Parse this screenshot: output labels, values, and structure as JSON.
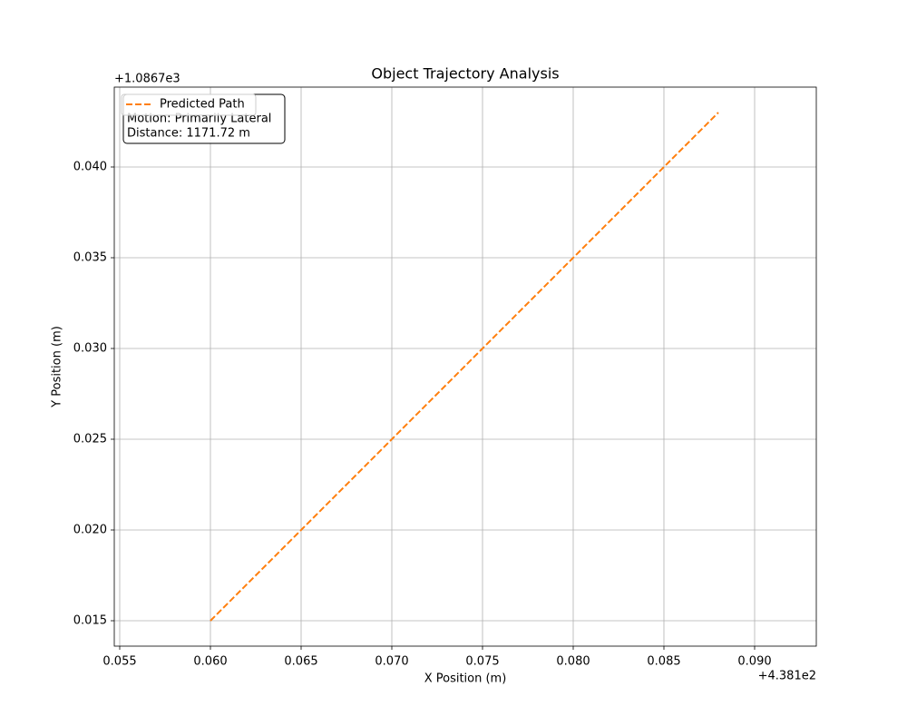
{
  "chart_data": {
    "type": "line",
    "title": "Object Trajectory Analysis",
    "x_label": "X Position (m)",
    "y_label": "Y Position (m)",
    "x_offset": "+4.381e2",
    "y_offset": "+1.0867e3",
    "x": [
      0.06,
      0.088
    ],
    "series": [
      {
        "name": "Predicted Path",
        "color": "#ff7f0e",
        "values": [
          0.015,
          0.043
        ]
      }
    ],
    "xlim": [
      0.0547,
      0.0934
    ],
    "xticks": [
      0.055,
      {
        "value": 0.06,
        "label": "0.060"
      },
      0.065,
      {
        "value": 0.07,
        "label": "0.070"
      },
      0.075,
      {
        "value": 0.08,
        "label": "0.080"
      },
      0.085,
      {
        "value": 0.09,
        "label": "0.090"
      }
    ],
    "ylim": [
      0.0136,
      0.0444
    ],
    "yticks": [
      0.015,
      {
        "value": 0.02,
        "label": "0.020"
      },
      0.025,
      {
        "value": 0.03,
        "label": "0.030"
      },
      0.035,
      {
        "value": 0.04,
        "label": "0.040"
      }
    ],
    "grid": true,
    "legend": "upper left",
    "annotation": [
      "Motion: Primarily Lateral",
      "Distance: 1171.72 m"
    ]
  }
}
